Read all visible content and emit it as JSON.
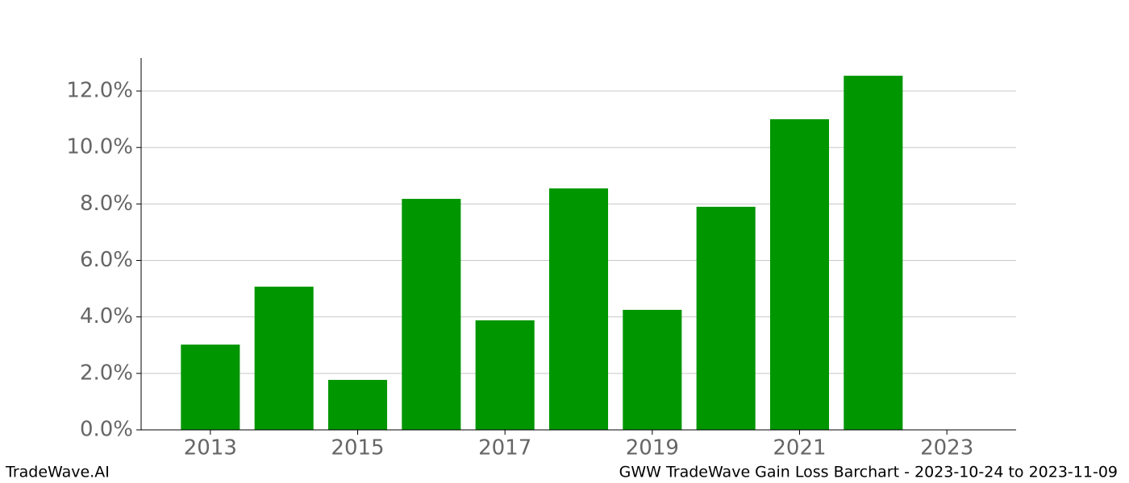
{
  "chart_data": {
    "type": "bar",
    "title": "GWW TradeWave Gain Loss Barchart - 2023-10-24 to 2023-11-09",
    "source": "TradeWave.AI",
    "x": [
      2013,
      2014,
      2015,
      2016,
      2017,
      2018,
      2019,
      2020,
      2021,
      2022,
      2023
    ],
    "values": [
      3.02,
      5.07,
      1.77,
      8.18,
      3.88,
      8.55,
      4.25,
      7.9,
      11.0,
      12.54,
      0
    ],
    "color": "#009600",
    "bar_width": 0.8,
    "xlim": [
      2012.06,
      2023.94
    ],
    "xticks": [
      2013,
      2015,
      2017,
      2019,
      2021,
      2023
    ],
    "ylim": [
      0,
      13.17
    ],
    "yticks": [
      {
        "value": 0,
        "label": "0.0%"
      },
      {
        "value": 2,
        "label": "2.0%"
      },
      {
        "value": 4,
        "label": "4.0%"
      },
      {
        "value": 6,
        "label": "6.0%"
      },
      {
        "value": 8,
        "label": "8.0%"
      },
      {
        "value": 10,
        "label": "10.0%"
      },
      {
        "value": 12,
        "label": "12.0%"
      }
    ],
    "grid": true
  }
}
